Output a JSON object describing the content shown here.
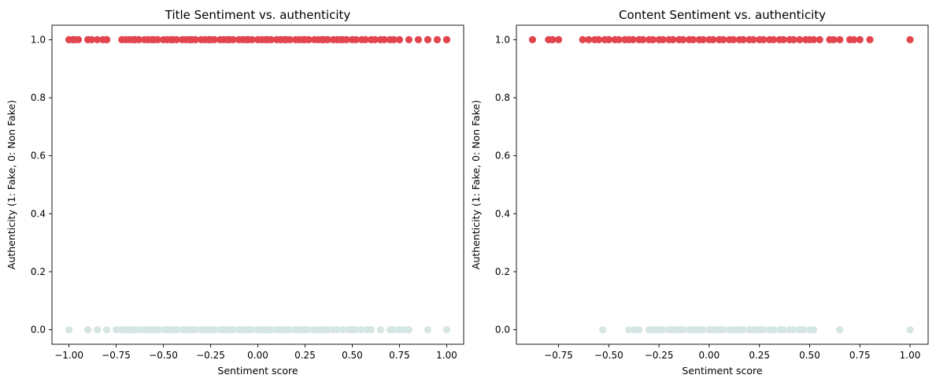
{
  "chart_data": [
    {
      "type": "scatter",
      "title": "Title Sentiment vs. authenticity",
      "xlabel": "Sentiment score",
      "ylabel": "Authenticity (1: Fake, 0: Non Fake)",
      "xlim": [
        -1.09,
        1.09
      ],
      "ylim": [
        -0.05,
        1.05
      ],
      "xticks": [
        -1.0,
        -0.75,
        -0.5,
        -0.25,
        0.0,
        0.25,
        0.5,
        0.75,
        1.0
      ],
      "xtick_labels": [
        "−1.00",
        "−0.75",
        "−0.50",
        "−0.25",
        "0.00",
        "0.25",
        "0.50",
        "0.75",
        "1.00"
      ],
      "yticks": [
        0.0,
        0.2,
        0.4,
        0.6,
        0.8,
        1.0
      ],
      "ytick_labels": [
        "0.0",
        "0.2",
        "0.4",
        "0.6",
        "0.8",
        "1.0"
      ],
      "grid": false,
      "series": [
        {
          "y_value": 1,
          "color": "#e2454e",
          "x": [
            -1.0,
            -0.98,
            -0.97,
            -0.95,
            -0.9,
            -0.88,
            -0.85,
            -0.82,
            -0.8,
            -0.8,
            -0.72,
            -0.7,
            -0.68,
            -0.66,
            -0.65,
            -0.63,
            -0.6,
            -0.58,
            -0.56,
            -0.55,
            -0.53,
            -0.5,
            -0.48,
            -0.46,
            -0.45,
            -0.43,
            -0.4,
            -0.38,
            -0.36,
            -0.35,
            -0.33,
            -0.3,
            -0.28,
            -0.26,
            -0.25,
            -0.23,
            -0.2,
            -0.18,
            -0.16,
            -0.15,
            -0.13,
            -0.1,
            -0.08,
            -0.06,
            -0.05,
            -0.03,
            0.0,
            0.02,
            0.04,
            0.05,
            0.07,
            0.1,
            0.12,
            0.14,
            0.15,
            0.17,
            0.2,
            0.22,
            0.24,
            0.25,
            0.27,
            0.3,
            0.32,
            0.34,
            0.35,
            0.37,
            0.4,
            0.42,
            0.44,
            0.45,
            0.47,
            0.5,
            0.52,
            0.55,
            0.57,
            0.6,
            0.62,
            0.65,
            0.67,
            0.7,
            0.72,
            0.75,
            0.8,
            0.85,
            0.9,
            0.95,
            1.0,
            1.0
          ]
        },
        {
          "y_value": 0,
          "color": "#d6e6e4",
          "x": [
            -1.0,
            -0.9,
            -0.85,
            -0.8,
            -0.75,
            -0.72,
            -0.7,
            -0.68,
            -0.66,
            -0.65,
            -0.63,
            -0.6,
            -0.58,
            -0.56,
            -0.55,
            -0.53,
            -0.5,
            -0.48,
            -0.46,
            -0.45,
            -0.43,
            -0.4,
            -0.38,
            -0.36,
            -0.35,
            -0.33,
            -0.3,
            -0.28,
            -0.26,
            -0.25,
            -0.23,
            -0.2,
            -0.18,
            -0.16,
            -0.15,
            -0.13,
            -0.1,
            -0.08,
            -0.06,
            -0.05,
            -0.03,
            0.0,
            0.02,
            0.04,
            0.05,
            0.07,
            0.1,
            0.12,
            0.14,
            0.15,
            0.17,
            0.2,
            0.22,
            0.24,
            0.25,
            0.27,
            0.3,
            0.32,
            0.34,
            0.35,
            0.37,
            0.4,
            0.42,
            0.45,
            0.48,
            0.5,
            0.52,
            0.55,
            0.58,
            0.6,
            0.65,
            0.7,
            0.72,
            0.75,
            0.78,
            0.8,
            0.9,
            1.0
          ]
        }
      ]
    },
    {
      "type": "scatter",
      "title": "Content Sentiment vs. authenticity",
      "xlabel": "Sentiment score",
      "ylabel": "Authenticity (1: Fake, 0: Non Fake)",
      "xlim": [
        -0.96,
        1.09
      ],
      "ylim": [
        -0.05,
        1.05
      ],
      "xticks": [
        -0.75,
        -0.5,
        -0.25,
        0.0,
        0.25,
        0.5,
        0.75,
        1.0
      ],
      "xtick_labels": [
        "−0.75",
        "−0.50",
        "−0.25",
        "0.00",
        "0.25",
        "0.50",
        "0.75",
        "1.00"
      ],
      "yticks": [
        0.0,
        0.2,
        0.4,
        0.6,
        0.8,
        1.0
      ],
      "ytick_labels": [
        "0.0",
        "0.2",
        "0.4",
        "0.6",
        "0.8",
        "1.0"
      ],
      "grid": false,
      "series": [
        {
          "y_value": 1,
          "color": "#e2454e",
          "x": [
            -0.88,
            -0.8,
            -0.78,
            -0.75,
            -0.63,
            -0.6,
            -0.57,
            -0.55,
            -0.52,
            -0.5,
            -0.47,
            -0.45,
            -0.42,
            -0.4,
            -0.38,
            -0.35,
            -0.33,
            -0.3,
            -0.28,
            -0.25,
            -0.23,
            -0.2,
            -0.18,
            -0.15,
            -0.13,
            -0.1,
            -0.08,
            -0.05,
            -0.03,
            0.0,
            0.02,
            0.05,
            0.07,
            0.1,
            0.12,
            0.15,
            0.17,
            0.2,
            0.22,
            0.25,
            0.27,
            0.3,
            0.32,
            0.35,
            0.37,
            0.4,
            0.42,
            0.45,
            0.48,
            0.5,
            0.52,
            0.55,
            0.6,
            0.62,
            0.65,
            0.7,
            0.72,
            0.75,
            0.8,
            1.0
          ]
        },
        {
          "y_value": 0,
          "color": "#d6e6e4",
          "x": [
            -0.53,
            -0.4,
            -0.37,
            -0.35,
            -0.3,
            -0.28,
            -0.26,
            -0.25,
            -0.23,
            -0.2,
            -0.18,
            -0.16,
            -0.15,
            -0.13,
            -0.1,
            -0.08,
            -0.06,
            -0.05,
            -0.03,
            0.0,
            0.02,
            0.04,
            0.05,
            0.07,
            0.1,
            0.12,
            0.14,
            0.15,
            0.17,
            0.2,
            0.22,
            0.24,
            0.25,
            0.27,
            0.3,
            0.32,
            0.35,
            0.37,
            0.4,
            0.42,
            0.45,
            0.47,
            0.5,
            0.52,
            0.65,
            1.0
          ]
        }
      ]
    }
  ]
}
